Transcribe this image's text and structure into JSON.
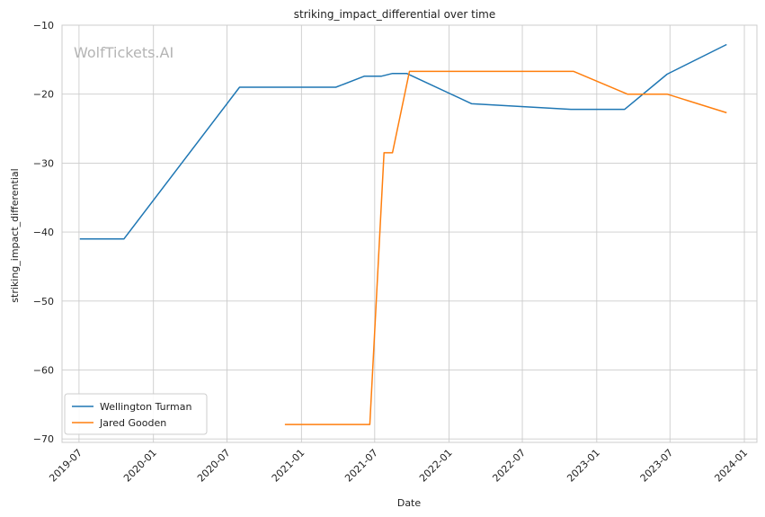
{
  "watermark": "WolfTickets.AI",
  "chart_data": {
    "type": "line",
    "title": "striking_impact_differential over time",
    "xlabel": "Date",
    "ylabel": "striking_impact_differential",
    "xlim": [
      "2019-05-20",
      "2024-02-01"
    ],
    "ylim": [
      -70.5,
      -10
    ],
    "yticks": [
      -10,
      -20,
      -30,
      -40,
      -50,
      -60,
      -70
    ],
    "xticks": [
      "2019-07-01",
      "2020-01-01",
      "2020-07-01",
      "2021-01-01",
      "2021-07-01",
      "2022-01-01",
      "2022-07-01",
      "2023-01-01",
      "2023-07-01",
      "2024-01-01"
    ],
    "xtick_labels": [
      "2019-07",
      "2020-01",
      "2020-07",
      "2021-01",
      "2021-07",
      "2022-01",
      "2022-07",
      "2023-01",
      "2023-07",
      "2024-01"
    ],
    "grid": true,
    "legend_position": "lower-left",
    "series": [
      {
        "name": "Wellington Turman",
        "color": "#1f77b4",
        "points": [
          {
            "x": "2019-07-03",
            "y": -41.0
          },
          {
            "x": "2019-10-20",
            "y": -41.0
          },
          {
            "x": "2020-08-01",
            "y": -19.0
          },
          {
            "x": "2021-03-27",
            "y": -19.0
          },
          {
            "x": "2021-06-05",
            "y": -17.4
          },
          {
            "x": "2021-07-17",
            "y": -17.4
          },
          {
            "x": "2021-08-14",
            "y": -17.0
          },
          {
            "x": "2021-09-18",
            "y": -17.0
          },
          {
            "x": "2022-02-26",
            "y": -21.4
          },
          {
            "x": "2022-10-29",
            "y": -22.2
          },
          {
            "x": "2023-03-11",
            "y": -22.2
          },
          {
            "x": "2023-06-24",
            "y": -17.1
          },
          {
            "x": "2023-11-18",
            "y": -12.8
          }
        ]
      },
      {
        "name": "Jared Gooden",
        "color": "#ff7f0e",
        "points": [
          {
            "x": "2020-11-21",
            "y": -67.9
          },
          {
            "x": "2021-06-19",
            "y": -67.9
          },
          {
            "x": "2021-07-24",
            "y": -28.5
          },
          {
            "x": "2021-08-14",
            "y": -28.5
          },
          {
            "x": "2021-09-25",
            "y": -16.7
          },
          {
            "x": "2022-11-05",
            "y": -16.7
          },
          {
            "x": "2023-03-18",
            "y": -20.0
          },
          {
            "x": "2023-06-24",
            "y": -20.0
          },
          {
            "x": "2023-11-18",
            "y": -22.7
          }
        ]
      }
    ]
  }
}
